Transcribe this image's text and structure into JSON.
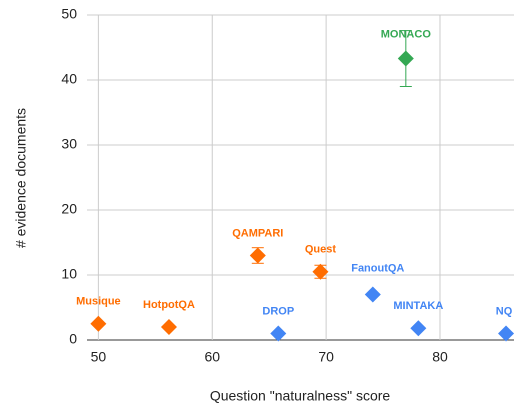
{
  "chart_data": {
    "type": "scatter",
    "xlabel": "Question \"naturalness\" score",
    "ylabel": "# evidence documents",
    "xlim": [
      49,
      86.5
    ],
    "xticks": [
      50,
      60,
      70,
      80
    ],
    "ylim": [
      0,
      50
    ],
    "yticks": [
      0,
      10,
      20,
      30,
      40,
      50
    ],
    "grid": true,
    "points": [
      {
        "label": "Musique",
        "x": 50,
        "y": 2.5,
        "color": "#ff6d01"
      },
      {
        "label": "HotpotQA",
        "x": 56.2,
        "y": 2.0,
        "color": "#ff6d01"
      },
      {
        "label": "QAMPARI",
        "x": 64,
        "y": 13,
        "error": 1.2,
        "color": "#ff6d01"
      },
      {
        "label": "Quest",
        "x": 69.5,
        "y": 10.5,
        "error": 1,
        "color": "#ff6d01"
      },
      {
        "label": "MONACO",
        "x": 77,
        "y": 43.3,
        "error": 4.3,
        "color": "#34a853"
      },
      {
        "label": "DROP",
        "x": 65.8,
        "y": 1.0,
        "color": "#4285f4"
      },
      {
        "label": "FanoutQA",
        "x": 74.1,
        "y": 7.0,
        "color": "#4285f4"
      },
      {
        "label": "MINTAKA",
        "x": 78.1,
        "y": 1.8,
        "color": "#4285f4"
      },
      {
        "label": "NQ",
        "x": 85.8,
        "y": 1.0,
        "color": "#4285f4"
      }
    ]
  }
}
